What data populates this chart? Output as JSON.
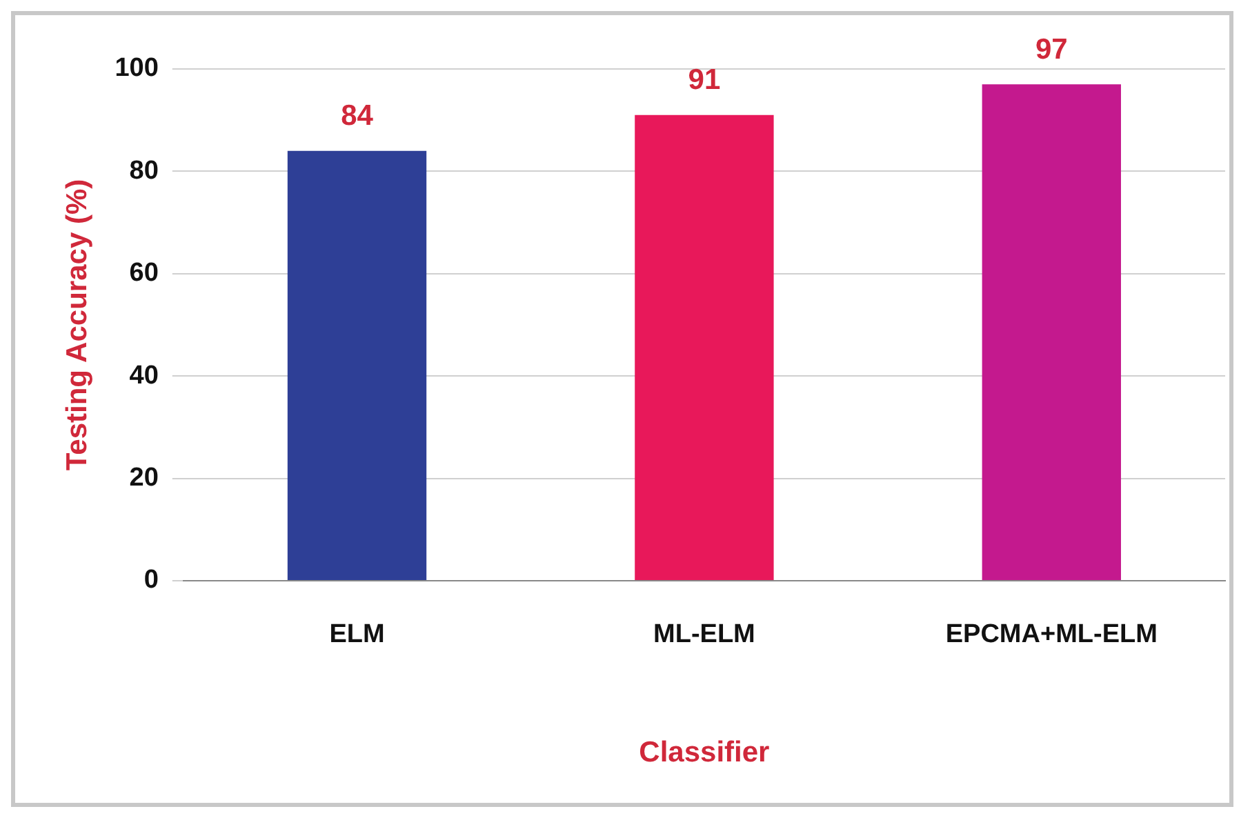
{
  "chart_data": {
    "type": "bar",
    "xlabel": "Classifier",
    "ylabel": "Testing Accuracy (%)",
    "categories": [
      "ELM",
      "ML-ELM",
      "EPCMA+ML-ELM"
    ],
    "values": [
      84,
      91,
      97
    ],
    "colors": [
      "#2e3f96",
      "#e8185a",
      "#c4198e"
    ],
    "ylim": [
      0,
      100
    ],
    "yticks": [
      0,
      20,
      40,
      60,
      80,
      100
    ],
    "grid": "y",
    "legend": false,
    "data_labels": true
  }
}
